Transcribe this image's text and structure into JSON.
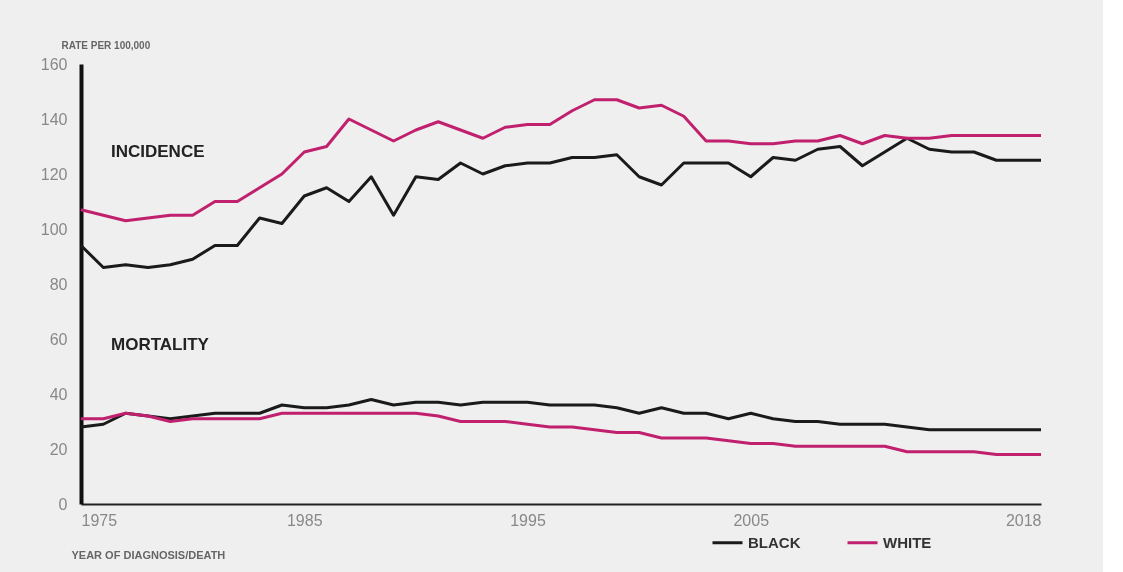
{
  "chart_data": {
    "type": "line",
    "xlabel": "YEAR OF DIAGNOSIS/DEATH",
    "ylabel": "RATE PER 100,000",
    "x": [
      1975,
      1976,
      1977,
      1978,
      1979,
      1980,
      1981,
      1982,
      1983,
      1984,
      1985,
      1986,
      1987,
      1988,
      1989,
      1990,
      1991,
      1992,
      1993,
      1994,
      1995,
      1996,
      1997,
      1998,
      1999,
      2000,
      2001,
      2002,
      2003,
      2004,
      2005,
      2006,
      2007,
      2008,
      2009,
      2010,
      2011,
      2012,
      2013,
      2014,
      2015,
      2016,
      2018
    ],
    "series": [
      {
        "name": "BLACK",
        "color": "#1a1a1a",
        "values": [
          94,
          86,
          87,
          86,
          87,
          89,
          94,
          94,
          104,
          102,
          112,
          115,
          110,
          119,
          105,
          119,
          118,
          124,
          120,
          123,
          124,
          124,
          126,
          126,
          127,
          119,
          116,
          124,
          124,
          124,
          119,
          126,
          125,
          129,
          130,
          123,
          128,
          133,
          129,
          128,
          128,
          125,
          125
        ]
      },
      {
        "name": "WHITE",
        "color": "#c0206e",
        "values": [
          107,
          105,
          103,
          104,
          105,
          105,
          110,
          110,
          115,
          120,
          128,
          130,
          140,
          136,
          132,
          136,
          139,
          136,
          133,
          137,
          138,
          138,
          143,
          147,
          147,
          144,
          145,
          141,
          132,
          132,
          131,
          131,
          132,
          132,
          134,
          131,
          134,
          133,
          133,
          134,
          134,
          134,
          134
        ]
      },
      {
        "color": "#1a1a1a",
        "values": [
          28,
          29,
          33,
          32,
          31,
          32,
          33,
          33,
          33,
          36,
          35,
          35,
          36,
          38,
          36,
          37,
          37,
          36,
          37,
          37,
          37,
          36,
          36,
          36,
          35,
          33,
          35,
          33,
          33,
          31,
          33,
          31,
          30,
          30,
          29,
          29,
          29,
          28,
          27,
          27,
          27,
          27,
          27
        ]
      },
      {
        "color": "#c0206e",
        "values": [
          31,
          31,
          33,
          32,
          30,
          31,
          31,
          31,
          31,
          33,
          33,
          33,
          33,
          33,
          33,
          33,
          32,
          30,
          30,
          30,
          29,
          28,
          28,
          27,
          26,
          26,
          24,
          24,
          24,
          23,
          22,
          22,
          21,
          21,
          21,
          21,
          21,
          19,
          19,
          19,
          19,
          18,
          18
        ]
      }
    ],
    "annotations": [
      "INCIDENCE",
      "MORTALITY"
    ],
    "xlim": [
      1975,
      2018
    ],
    "xticks": [
      1975,
      1985,
      1995,
      2005,
      2018
    ],
    "ylim": [
      0,
      160
    ],
    "yticks": [
      0,
      20,
      40,
      60,
      80,
      100,
      120,
      140,
      160
    ],
    "grid": false,
    "legend": "bottom right",
    "line_style": "solid"
  }
}
